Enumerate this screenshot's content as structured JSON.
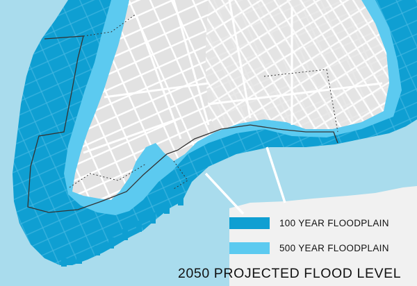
{
  "map": {
    "title": "2050 PROJECTED FLOOD LEVEL",
    "colors": {
      "water": "#a9dced",
      "floodplain_100yr": "#0f9fd2",
      "floodplain_500yr": "#5ccaf0",
      "land": "#f1f1f1",
      "streets": "#ffffff",
      "building_blocks": "#dedede",
      "boundary_line": "#333333"
    },
    "legend": [
      {
        "label": "100 YEAR FLOODPLAIN",
        "color": "#0f9fd2"
      },
      {
        "label": "500 YEAR FLOODPLAIN",
        "color": "#5ccaf0"
      }
    ]
  }
}
